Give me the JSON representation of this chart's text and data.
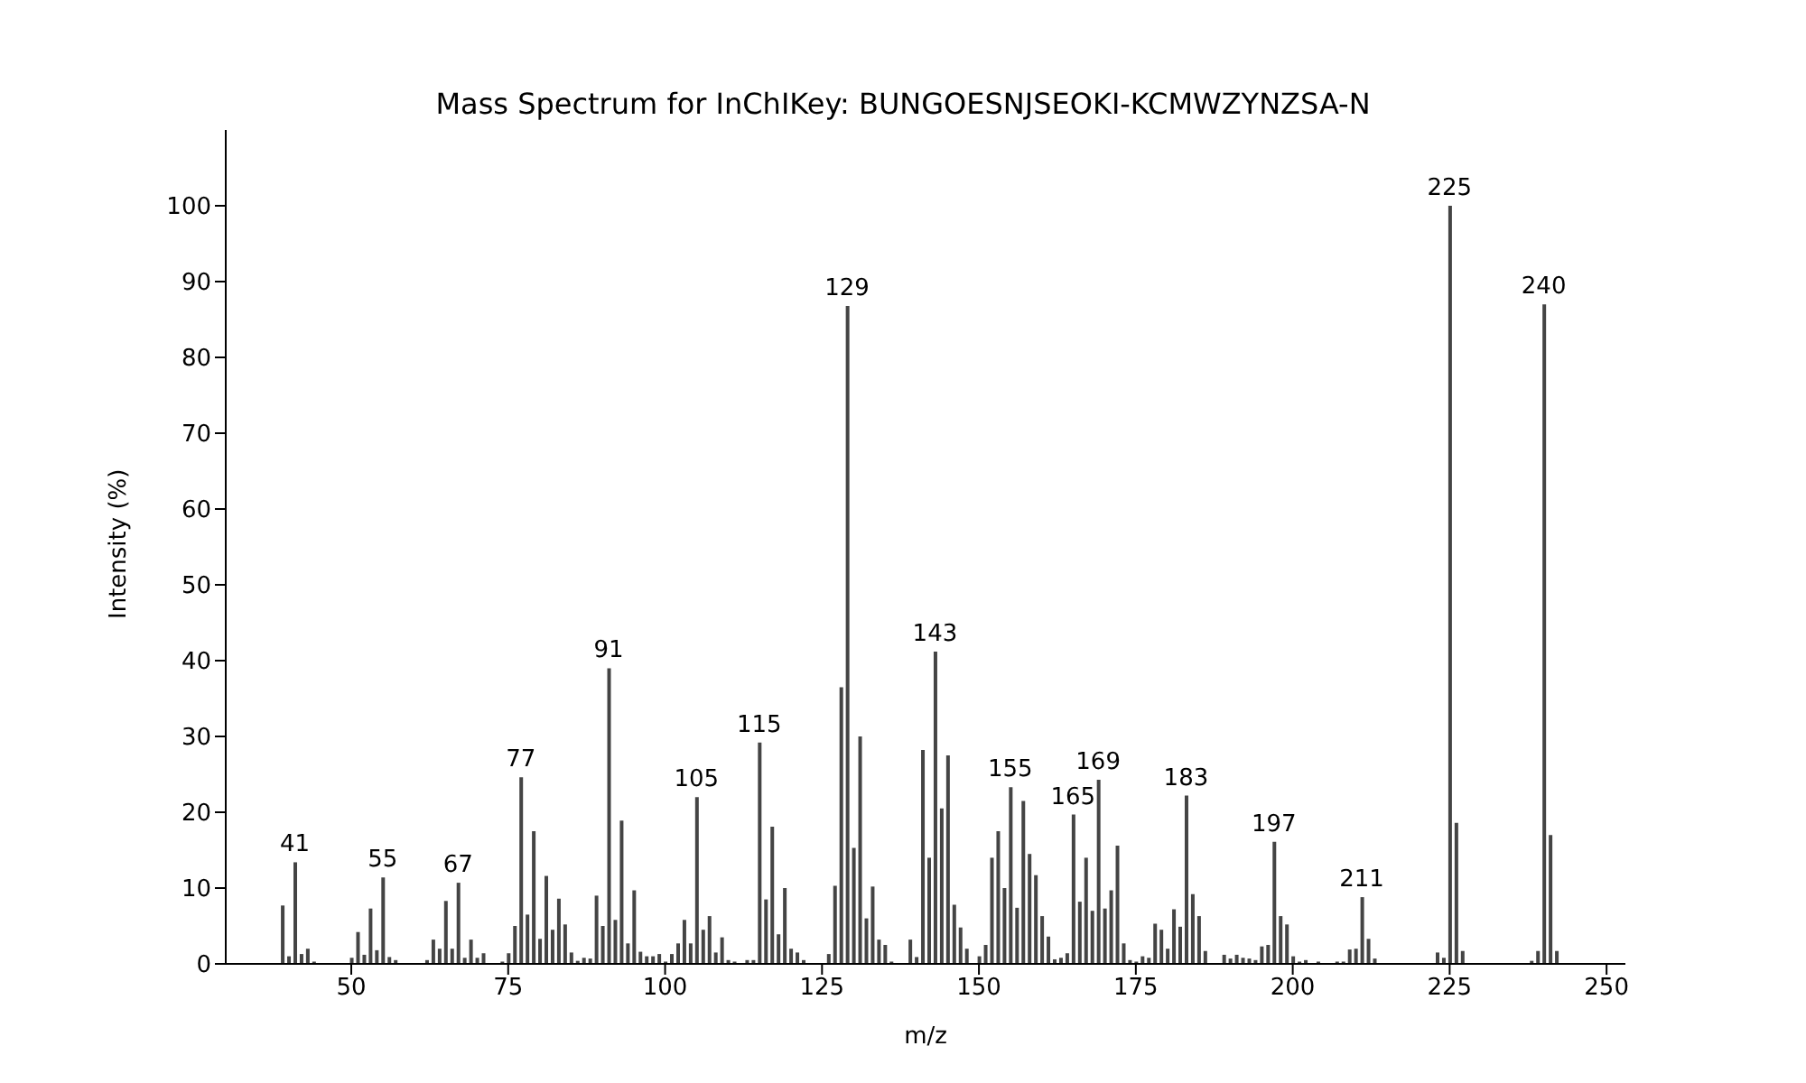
{
  "chart_data": {
    "type": "bar",
    "title": "Mass Spectrum for InChIKey: BUNGOESNJSEOKI-KCMWZYNZSA-N",
    "xlabel": "m/z",
    "ylabel": "Intensity (%)",
    "x": [
      39,
      40,
      41,
      42,
      43,
      44,
      50,
      51,
      52,
      53,
      54,
      55,
      56,
      57,
      62,
      63,
      64,
      65,
      66,
      67,
      68,
      69,
      70,
      71,
      74,
      75,
      76,
      77,
      78,
      79,
      80,
      81,
      82,
      83,
      84,
      85,
      86,
      87,
      88,
      89,
      90,
      91,
      92,
      93,
      94,
      95,
      96,
      97,
      98,
      99,
      100,
      101,
      102,
      103,
      104,
      105,
      106,
      107,
      108,
      109,
      110,
      111,
      113,
      114,
      115,
      116,
      117,
      118,
      119,
      120,
      121,
      122,
      126,
      127,
      128,
      129,
      130,
      131,
      132,
      133,
      134,
      135,
      136,
      139,
      140,
      141,
      142,
      143,
      144,
      145,
      146,
      147,
      148,
      150,
      151,
      152,
      153,
      154,
      155,
      156,
      157,
      158,
      159,
      160,
      161,
      162,
      163,
      164,
      165,
      166,
      167,
      168,
      169,
      170,
      171,
      172,
      173,
      174,
      175,
      176,
      177,
      178,
      179,
      180,
      181,
      182,
      183,
      184,
      185,
      186,
      189,
      190,
      191,
      192,
      193,
      194,
      195,
      196,
      197,
      198,
      199,
      200,
      201,
      202,
      204,
      207,
      208,
      209,
      210,
      211,
      212,
      213,
      223,
      224,
      225,
      226,
      227,
      238,
      239,
      240,
      241,
      242
    ],
    "values": [
      7.7,
      1,
      13.4,
      1.3,
      2,
      0.3,
      0.8,
      4.2,
      1.2,
      7.3,
      1.8,
      11.4,
      0.9,
      0.5,
      0.5,
      3.2,
      2,
      8.3,
      2,
      10.7,
      0.8,
      3.2,
      0.8,
      1.4,
      0.3,
      1.4,
      5,
      24.6,
      6.5,
      17.5,
      3.3,
      11.6,
      4.5,
      8.6,
      5.2,
      1.5,
      0.4,
      0.8,
      0.7,
      9,
      5,
      39,
      5.8,
      18.9,
      2.7,
      9.7,
      1.6,
      1,
      1,
      1.3,
      0.3,
      1.3,
      2.7,
      5.8,
      2.7,
      22,
      4.5,
      6.3,
      1.5,
      3.5,
      0.5,
      0.3,
      0.5,
      0.5,
      29.2,
      8.5,
      18.1,
      3.9,
      10,
      2,
      1.5,
      0.5,
      1.3,
      10.3,
      36.5,
      86.8,
      15.3,
      30,
      6,
      10.2,
      3.2,
      2.5,
      0.3,
      3.2,
      0.9,
      28.2,
      14,
      41.2,
      20.5,
      27.5,
      7.8,
      4.8,
      2,
      1,
      2.5,
      14,
      17.5,
      10,
      23.3,
      7.4,
      21.5,
      14.5,
      11.7,
      6.3,
      3.6,
      0.6,
      0.8,
      1.4,
      19.7,
      8.2,
      14,
      7,
      24.3,
      7.3,
      9.7,
      15.6,
      2.7,
      0.5,
      0.3,
      1,
      0.8,
      5.3,
      4.5,
      2,
      7.2,
      4.9,
      22.2,
      9.2,
      6.3,
      1.7,
      1.2,
      0.7,
      1.2,
      0.8,
      0.7,
      0.5,
      2.3,
      2.5,
      16.1,
      6.3,
      5.2,
      1,
      0.3,
      0.5,
      0.3,
      0.3,
      0.3,
      1.9,
      2,
      8.8,
      3.3,
      0.7,
      1.5,
      0.8,
      100,
      18.6,
      1.7,
      0.4,
      1.7,
      87,
      17,
      1.7
    ],
    "color": "#444444",
    "xlim": [
      30,
      253
    ],
    "xticks": [
      50,
      75,
      100,
      125,
      150,
      175,
      200,
      225,
      250
    ],
    "ylim": [
      0,
      110
    ],
    "yticks": [
      0,
      10,
      20,
      30,
      40,
      50,
      60,
      70,
      80,
      90,
      100
    ],
    "grid": false,
    "legend": false,
    "annotations": [
      {
        "text": "41",
        "x": 41,
        "y": 13.4
      },
      {
        "text": "55",
        "x": 55,
        "y": 11.4
      },
      {
        "text": "67",
        "x": 67,
        "y": 10.7
      },
      {
        "text": "77",
        "x": 77,
        "y": 24.6
      },
      {
        "text": "91",
        "x": 91,
        "y": 39
      },
      {
        "text": "105",
        "x": 105,
        "y": 22
      },
      {
        "text": "115",
        "x": 115,
        "y": 29.2
      },
      {
        "text": "129",
        "x": 129,
        "y": 86.8
      },
      {
        "text": "143",
        "x": 143,
        "y": 41.2
      },
      {
        "text": "155",
        "x": 155,
        "y": 23.3
      },
      {
        "text": "165",
        "x": 165,
        "y": 19.7
      },
      {
        "text": "169",
        "x": 169,
        "y": 24.3
      },
      {
        "text": "183",
        "x": 183,
        "y": 22.2
      },
      {
        "text": "197",
        "x": 197,
        "y": 16.1
      },
      {
        "text": "211",
        "x": 211,
        "y": 8.8
      },
      {
        "text": "225",
        "x": 225,
        "y": 100
      },
      {
        "text": "240",
        "x": 240,
        "y": 87
      }
    ]
  }
}
